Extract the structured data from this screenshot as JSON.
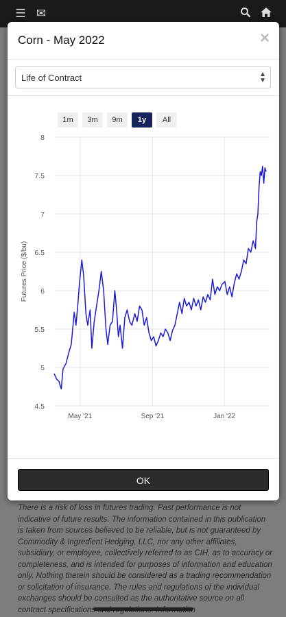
{
  "topbar": {
    "left_icons": [
      "menu-icon",
      "mail-icon"
    ],
    "right_icons": [
      "search-icon",
      "home-icon"
    ]
  },
  "modal": {
    "title": "Corn - May 2022",
    "close_label": "×",
    "select_value": "Life of Contract",
    "range_buttons": [
      {
        "label": "1m",
        "active": false
      },
      {
        "label": "3m",
        "active": false
      },
      {
        "label": "9m",
        "active": false
      },
      {
        "label": "1y",
        "active": true
      },
      {
        "label": "All",
        "active": false
      }
    ],
    "ok_label": "OK"
  },
  "disclaimer": "There is a risk of loss in futures trading. Past performance is not indicative of future results. The information contained in this publication is taken from sources believed to be reliable, but is not guaranteed by Commodity & Ingredient Hedging, LLC, nor any other affiliates, subsidiary, or employee, collectively referred to as CIH, as to accuracy or completeness, and is intended for purposes of information and education only. Nothing therein should be considered as a trading recommendation or solicitation of insurance. The rules and regulations of the individual exchanges should be consulted as the authoritative source on all contract specifications and regulations. Information",
  "colors": {
    "line": "#1a1adb",
    "active_button": "#17245b"
  },
  "chart_data": {
    "type": "line",
    "ylabel": "Futures Price ($/bu)",
    "ylim": [
      4.5,
      8
    ],
    "yticks": [
      "4.5",
      "5",
      "5.5",
      "6",
      "6.5",
      "7",
      "7.5",
      "8"
    ],
    "xticks": [
      {
        "label": "May '21",
        "date": "2021-05-01"
      },
      {
        "label": "Sep '21",
        "date": "2021-09-01"
      },
      {
        "label": "Jan '22",
        "date": "2022-01-01"
      }
    ],
    "grid": true,
    "series": [
      {
        "points": [
          [
            "2021-03-18",
            4.92
          ],
          [
            "2021-03-22",
            4.85
          ],
          [
            "2021-03-26",
            4.82
          ],
          [
            "2021-03-30",
            4.72
          ],
          [
            "2021-04-02",
            4.98
          ],
          [
            "2021-04-07",
            5.05
          ],
          [
            "2021-04-12",
            5.2
          ],
          [
            "2021-04-16",
            5.3
          ],
          [
            "2021-04-21",
            5.72
          ],
          [
            "2021-04-24",
            5.55
          ],
          [
            "2021-04-27",
            5.8
          ],
          [
            "2021-04-30",
            6.1
          ],
          [
            "2021-05-04",
            6.4
          ],
          [
            "2021-05-07",
            6.2
          ],
          [
            "2021-05-11",
            5.7
          ],
          [
            "2021-05-14",
            5.55
          ],
          [
            "2021-05-18",
            5.75
          ],
          [
            "2021-05-21",
            5.25
          ],
          [
            "2021-05-25",
            5.6
          ],
          [
            "2021-05-28",
            5.75
          ],
          [
            "2021-06-02",
            6.0
          ],
          [
            "2021-06-06",
            6.25
          ],
          [
            "2021-06-10",
            6.0
          ],
          [
            "2021-06-14",
            5.5
          ],
          [
            "2021-06-17",
            5.3
          ],
          [
            "2021-06-21",
            5.55
          ],
          [
            "2021-06-25",
            5.6
          ],
          [
            "2021-06-29",
            6.0
          ],
          [
            "2021-07-02",
            5.75
          ],
          [
            "2021-07-05",
            5.4
          ],
          [
            "2021-07-08",
            5.55
          ],
          [
            "2021-07-12",
            5.25
          ],
          [
            "2021-07-16",
            5.65
          ],
          [
            "2021-07-20",
            5.75
          ],
          [
            "2021-07-24",
            5.6
          ],
          [
            "2021-07-28",
            5.55
          ],
          [
            "2021-08-02",
            5.7
          ],
          [
            "2021-08-06",
            5.6
          ],
          [
            "2021-08-10",
            5.8
          ],
          [
            "2021-08-14",
            5.75
          ],
          [
            "2021-08-18",
            5.55
          ],
          [
            "2021-08-22",
            5.65
          ],
          [
            "2021-08-26",
            5.45
          ],
          [
            "2021-08-30",
            5.35
          ],
          [
            "2021-09-03",
            5.4
          ],
          [
            "2021-09-07",
            5.28
          ],
          [
            "2021-09-11",
            5.35
          ],
          [
            "2021-09-15",
            5.45
          ],
          [
            "2021-09-19",
            5.4
          ],
          [
            "2021-09-23",
            5.5
          ],
          [
            "2021-09-27",
            5.45
          ],
          [
            "2021-10-01",
            5.35
          ],
          [
            "2021-10-05",
            5.48
          ],
          [
            "2021-10-09",
            5.55
          ],
          [
            "2021-10-13",
            5.7
          ],
          [
            "2021-10-17",
            5.85
          ],
          [
            "2021-10-21",
            5.7
          ],
          [
            "2021-10-25",
            5.9
          ],
          [
            "2021-10-29",
            5.8
          ],
          [
            "2021-11-02",
            5.85
          ],
          [
            "2021-11-06",
            5.75
          ],
          [
            "2021-11-10",
            5.9
          ],
          [
            "2021-11-14",
            5.8
          ],
          [
            "2021-11-18",
            5.88
          ],
          [
            "2021-11-22",
            5.75
          ],
          [
            "2021-11-26",
            5.92
          ],
          [
            "2021-11-30",
            5.85
          ],
          [
            "2021-12-04",
            5.95
          ],
          [
            "2021-12-08",
            5.88
          ],
          [
            "2021-12-12",
            6.15
          ],
          [
            "2021-12-16",
            5.95
          ],
          [
            "2021-12-20",
            6.05
          ],
          [
            "2021-12-24",
            6.0
          ],
          [
            "2021-12-28",
            6.08
          ],
          [
            "2022-01-02",
            6.12
          ],
          [
            "2022-01-06",
            5.95
          ],
          [
            "2022-01-10",
            6.05
          ],
          [
            "2022-01-14",
            5.92
          ],
          [
            "2022-01-18",
            6.1
          ],
          [
            "2022-01-22",
            6.22
          ],
          [
            "2022-01-26",
            6.15
          ],
          [
            "2022-01-30",
            6.25
          ],
          [
            "2022-02-03",
            6.4
          ],
          [
            "2022-02-07",
            6.35
          ],
          [
            "2022-02-11",
            6.55
          ],
          [
            "2022-02-15",
            6.5
          ],
          [
            "2022-02-19",
            6.65
          ],
          [
            "2022-02-23",
            6.55
          ],
          [
            "2022-02-25",
            6.9
          ],
          [
            "2022-02-27",
            7.0
          ],
          [
            "2022-03-01",
            7.35
          ],
          [
            "2022-03-03",
            7.55
          ],
          [
            "2022-03-05",
            7.5
          ],
          [
            "2022-03-07",
            7.62
          ],
          [
            "2022-03-09",
            7.4
          ],
          [
            "2022-03-11",
            7.6
          ],
          [
            "2022-03-13",
            7.55
          ]
        ]
      }
    ]
  }
}
